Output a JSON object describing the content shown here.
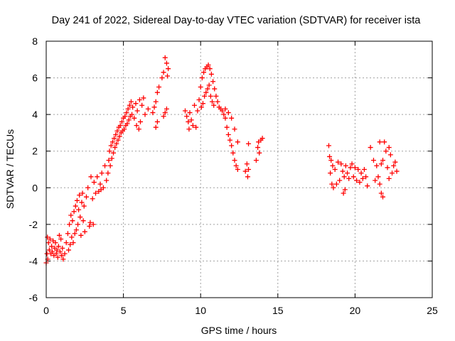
{
  "chart_data": {
    "type": "scatter",
    "title": "Day 241 of 2022, Sidereal Day-to-day VTEC variation (SDTVAR) for receiver ista",
    "xlabel": "GPS time / hours",
    "ylabel": "SDTVAR / TECUs",
    "xlim": [
      0,
      25
    ],
    "ylim": [
      -6,
      8
    ],
    "xticks": [
      0,
      5,
      10,
      15,
      20,
      25
    ],
    "yticks": [
      -6,
      -4,
      -2,
      0,
      2,
      4,
      6,
      8
    ],
    "grid": true,
    "marker": "plus",
    "series": [
      {
        "name": "SDTVAR",
        "color": "#ff0000",
        "points": [
          [
            0.0,
            -4.1
          ],
          [
            0.05,
            -3.6
          ],
          [
            0.08,
            -2.7
          ],
          [
            0.1,
            -3.9
          ],
          [
            0.15,
            -3.0
          ],
          [
            0.2,
            -3.4
          ],
          [
            0.25,
            -2.8
          ],
          [
            0.3,
            -3.6
          ],
          [
            0.35,
            -3.2
          ],
          [
            0.4,
            -3.5
          ],
          [
            0.45,
            -2.9
          ],
          [
            0.5,
            -3.7
          ],
          [
            0.55,
            -3.3
          ],
          [
            0.6,
            -3.0
          ],
          [
            0.65,
            -3.6
          ],
          [
            0.7,
            -3.4
          ],
          [
            0.75,
            -3.8
          ],
          [
            0.8,
            -3.2
          ],
          [
            0.85,
            -2.6
          ],
          [
            0.9,
            -3.5
          ],
          [
            0.95,
            -2.8
          ],
          [
            1.0,
            -3.7
          ],
          [
            1.05,
            -3.3
          ],
          [
            1.1,
            -3.9
          ],
          [
            1.2,
            -3.6
          ],
          [
            1.3,
            -3.0
          ],
          [
            1.4,
            -2.5
          ],
          [
            1.45,
            -3.4
          ],
          [
            1.5,
            -2.0
          ],
          [
            1.55,
            -3.1
          ],
          [
            1.6,
            -1.5
          ],
          [
            1.65,
            -2.7
          ],
          [
            1.7,
            -1.8
          ],
          [
            1.75,
            -3.0
          ],
          [
            1.8,
            -1.3
          ],
          [
            1.85,
            -2.5
          ],
          [
            1.9,
            -1.0
          ],
          [
            1.95,
            -2.3
          ],
          [
            2.0,
            -0.7
          ],
          [
            2.05,
            -2.0
          ],
          [
            2.1,
            -1.2
          ],
          [
            2.15,
            -0.4
          ],
          [
            2.2,
            -1.6
          ],
          [
            2.25,
            -2.6
          ],
          [
            2.3,
            -0.8
          ],
          [
            2.35,
            -0.3
          ],
          [
            2.4,
            -1.8
          ],
          [
            2.45,
            -1.0
          ],
          [
            2.5,
            -2.4
          ],
          [
            2.6,
            -0.5
          ],
          [
            2.7,
            0.0
          ],
          [
            2.8,
            -2.1
          ],
          [
            2.85,
            -1.9
          ],
          [
            2.9,
            0.6
          ],
          [
            3.0,
            -0.6
          ],
          [
            3.05,
            -2.0
          ],
          [
            3.1,
            0.3
          ],
          [
            3.2,
            -0.3
          ],
          [
            3.3,
            0.6
          ],
          [
            3.4,
            -0.2
          ],
          [
            3.5,
            0.2
          ],
          [
            3.55,
            -0.1
          ],
          [
            3.6,
            0.8
          ],
          [
            3.7,
            0.0
          ],
          [
            3.8,
            1.2
          ],
          [
            3.9,
            0.4
          ],
          [
            4.0,
            0.8
          ],
          [
            4.05,
            1.5
          ],
          [
            4.1,
            2.0
          ],
          [
            4.15,
            1.2
          ],
          [
            4.2,
            2.3
          ],
          [
            4.25,
            1.6
          ],
          [
            4.3,
            2.5
          ],
          [
            4.35,
            1.9
          ],
          [
            4.4,
            2.7
          ],
          [
            4.45,
            2.2
          ],
          [
            4.5,
            2.9
          ],
          [
            4.55,
            2.4
          ],
          [
            4.6,
            3.1
          ],
          [
            4.65,
            2.6
          ],
          [
            4.7,
            3.3
          ],
          [
            4.75,
            2.8
          ],
          [
            4.8,
            3.4
          ],
          [
            4.85,
            3.0
          ],
          [
            4.9,
            3.6
          ],
          [
            4.95,
            3.1
          ],
          [
            5.0,
            3.8
          ],
          [
            5.05,
            3.2
          ],
          [
            5.1,
            3.9
          ],
          [
            5.15,
            3.4
          ],
          [
            5.2,
            4.1
          ],
          [
            5.25,
            3.5
          ],
          [
            5.3,
            4.3
          ],
          [
            5.35,
            3.7
          ],
          [
            5.4,
            4.5
          ],
          [
            5.45,
            3.9
          ],
          [
            5.5,
            4.7
          ],
          [
            5.55,
            4.0
          ],
          [
            5.6,
            4.4
          ],
          [
            5.7,
            3.8
          ],
          [
            5.8,
            4.6
          ],
          [
            5.85,
            3.4
          ],
          [
            5.9,
            4.2
          ],
          [
            6.0,
            3.2
          ],
          [
            6.05,
            4.8
          ],
          [
            6.1,
            3.6
          ],
          [
            6.2,
            4.5
          ],
          [
            6.3,
            4.9
          ],
          [
            6.4,
            4.0
          ],
          [
            6.6,
            4.3
          ],
          [
            6.9,
            4.1
          ],
          [
            7.0,
            4.4
          ],
          [
            7.1,
            4.7
          ],
          [
            7.2,
            5.2
          ],
          [
            7.3,
            5.5
          ],
          [
            7.5,
            6.0
          ],
          [
            7.6,
            6.3
          ],
          [
            7.7,
            7.1
          ],
          [
            7.8,
            6.8
          ],
          [
            7.85,
            6.1
          ],
          [
            7.9,
            6.5
          ],
          [
            7.7,
            4.1
          ],
          [
            7.8,
            4.3
          ],
          [
            7.6,
            3.9
          ],
          [
            7.1,
            3.3
          ],
          [
            7.2,
            3.6
          ],
          [
            9.0,
            4.2
          ],
          [
            9.1,
            3.9
          ],
          [
            9.2,
            3.6
          ],
          [
            9.25,
            3.2
          ],
          [
            9.3,
            4.1
          ],
          [
            9.4,
            3.7
          ],
          [
            9.5,
            3.4
          ],
          [
            9.6,
            4.5
          ],
          [
            9.7,
            3.3
          ],
          [
            9.8,
            4.2
          ],
          [
            9.9,
            4.8
          ],
          [
            10.0,
            5.5
          ],
          [
            10.05,
            4.4
          ],
          [
            10.1,
            6.0
          ],
          [
            10.15,
            4.6
          ],
          [
            10.2,
            6.3
          ],
          [
            10.25,
            5.0
          ],
          [
            10.3,
            6.5
          ],
          [
            10.35,
            5.2
          ],
          [
            10.4,
            6.6
          ],
          [
            10.45,
            5.4
          ],
          [
            10.5,
            6.7
          ],
          [
            10.55,
            5.6
          ],
          [
            10.6,
            6.5
          ],
          [
            10.65,
            5.0
          ],
          [
            10.7,
            6.2
          ],
          [
            10.75,
            4.7
          ],
          [
            10.8,
            5.8
          ],
          [
            10.85,
            4.5
          ],
          [
            10.9,
            5.4
          ],
          [
            11.0,
            5.0
          ],
          [
            11.1,
            4.7
          ],
          [
            11.2,
            4.4
          ],
          [
            11.3,
            4.3
          ],
          [
            11.4,
            4.2
          ],
          [
            11.5,
            4.0
          ],
          [
            11.6,
            3.8
          ],
          [
            11.7,
            3.3
          ],
          [
            11.8,
            2.9
          ],
          [
            11.9,
            2.6
          ],
          [
            12.0,
            2.3
          ],
          [
            12.1,
            1.9
          ],
          [
            12.2,
            1.5
          ],
          [
            12.3,
            1.2
          ],
          [
            12.4,
            1.0
          ],
          [
            11.6,
            4.3
          ],
          [
            11.8,
            4.1
          ],
          [
            12.0,
            3.8
          ],
          [
            12.2,
            3.2
          ],
          [
            12.4,
            2.5
          ],
          [
            12.9,
            0.9
          ],
          [
            13.0,
            1.3
          ],
          [
            13.05,
            0.6
          ],
          [
            13.1,
            1.0
          ],
          [
            13.1,
            2.4
          ],
          [
            13.6,
            1.5
          ],
          [
            13.7,
            2.2
          ],
          [
            13.8,
            1.9
          ],
          [
            13.9,
            2.6
          ],
          [
            14.0,
            2.7
          ],
          [
            13.75,
            2.5
          ],
          [
            18.3,
            2.3
          ],
          [
            18.35,
            1.7
          ],
          [
            18.4,
            0.8
          ],
          [
            18.45,
            1.5
          ],
          [
            18.5,
            0.2
          ],
          [
            18.55,
            1.2
          ],
          [
            18.6,
            0.0
          ],
          [
            18.7,
            1.0
          ],
          [
            18.8,
            0.2
          ],
          [
            18.9,
            1.4
          ],
          [
            19.0,
            0.4
          ],
          [
            19.1,
            1.3
          ],
          [
            19.2,
            0.9
          ],
          [
            19.25,
            -0.3
          ],
          [
            19.3,
            0.6
          ],
          [
            19.35,
            -0.1
          ],
          [
            19.4,
            1.2
          ],
          [
            19.5,
            0.8
          ],
          [
            19.6,
            0.5
          ],
          [
            19.7,
            1.1
          ],
          [
            19.8,
            1.3
          ],
          [
            19.9,
            0.6
          ],
          [
            20.0,
            1.1
          ],
          [
            20.1,
            0.4
          ],
          [
            20.2,
            1.0
          ],
          [
            20.3,
            0.3
          ],
          [
            20.4,
            0.8
          ],
          [
            20.5,
            0.5
          ],
          [
            20.6,
            1.0
          ],
          [
            20.7,
            0.6
          ],
          [
            20.8,
            0.1
          ],
          [
            21.0,
            2.2
          ],
          [
            21.2,
            1.5
          ],
          [
            21.3,
            0.4
          ],
          [
            21.4,
            1.2
          ],
          [
            21.5,
            0.6
          ],
          [
            21.6,
            0.2
          ],
          [
            21.7,
            -0.3
          ],
          [
            21.8,
            -0.5
          ],
          [
            21.6,
            2.5
          ],
          [
            21.7,
            1.3
          ],
          [
            21.8,
            1.5
          ],
          [
            21.9,
            2.5
          ],
          [
            22.0,
            2.0
          ],
          [
            22.1,
            1.1
          ],
          [
            22.2,
            0.5
          ],
          [
            22.2,
            2.2
          ],
          [
            22.3,
            1.8
          ],
          [
            22.4,
            0.8
          ],
          [
            22.5,
            1.2
          ],
          [
            22.6,
            1.4
          ],
          [
            22.7,
            0.9
          ]
        ]
      }
    ]
  }
}
